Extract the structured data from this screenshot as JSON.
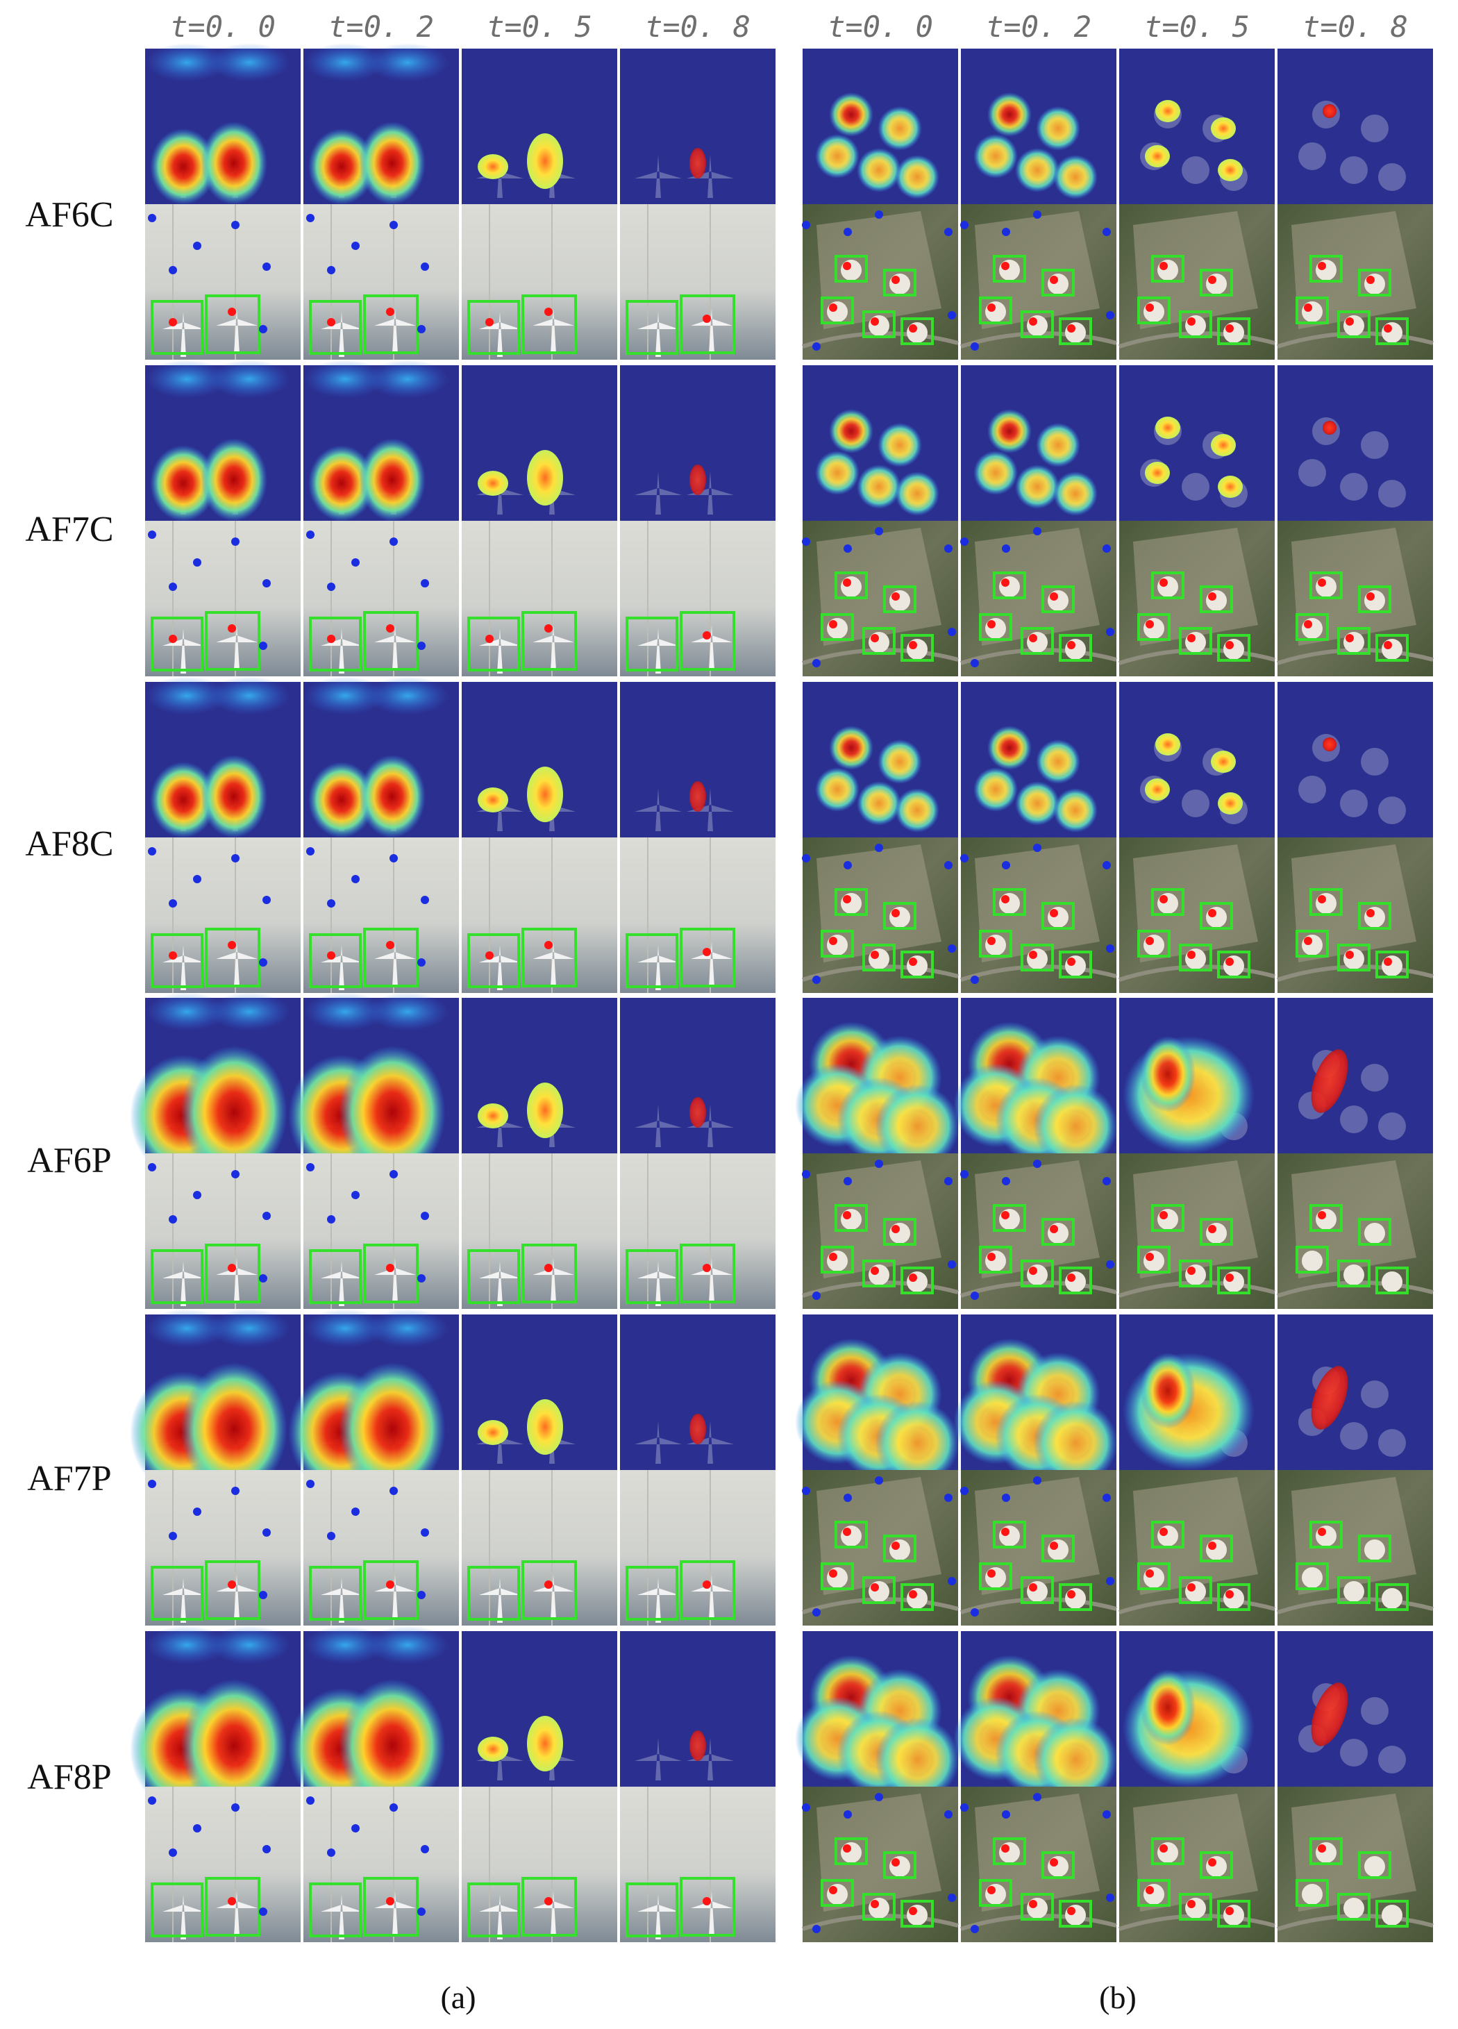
{
  "timesteps": [
    "t=0. 0",
    "t=0. 2",
    "t=0. 5",
    "t=0. 8"
  ],
  "rows": [
    "AF6C",
    "AF7C",
    "AF8C",
    "AF6P",
    "AF7P",
    "AF8P"
  ],
  "captions": {
    "a": "(a)",
    "b": "(b)"
  },
  "colors": {
    "box": "#35e02c",
    "pos_point": "#ff1414",
    "neg_point": "#1b2de0",
    "heat_bg": "#2b2f8f"
  }
}
